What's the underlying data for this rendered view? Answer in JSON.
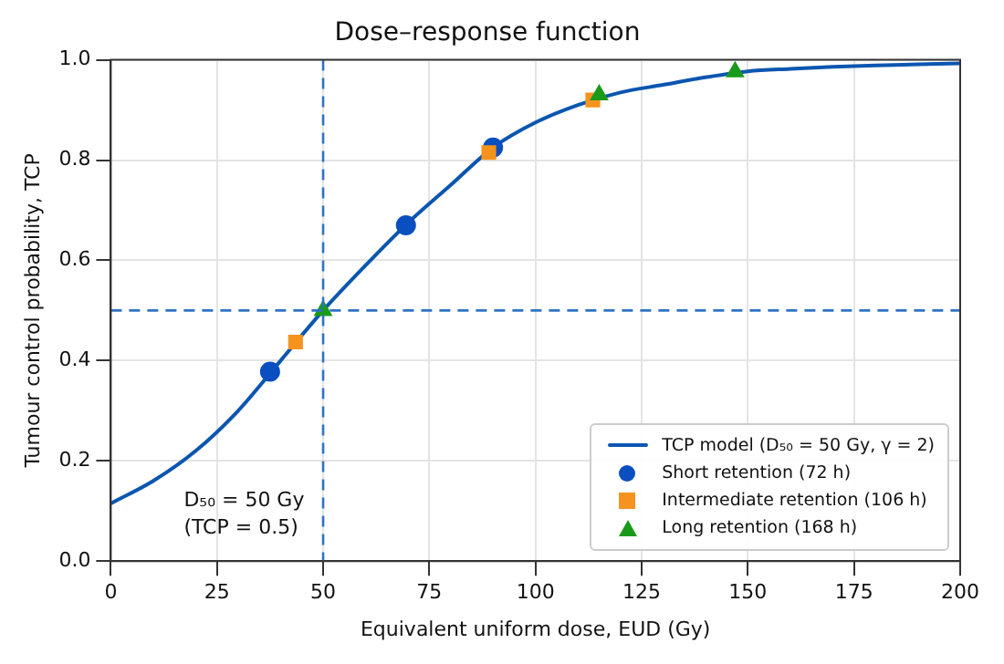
{
  "chart_data": {
    "type": "scatter",
    "title": "Dose–response function",
    "xlabel": "Equivalent uniform dose, EUD (Gy)",
    "ylabel": "Tumour control probability, TCP",
    "xlim": [
      0,
      200
    ],
    "xticks": [
      0,
      25,
      50,
      75,
      100,
      125,
      150,
      175,
      200
    ],
    "ylim": [
      0,
      1
    ],
    "yticks": [
      {
        "value": 0,
        "label": "0.0"
      },
      0.2,
      0.4,
      0.6,
      0.8,
      {
        "value": 1,
        "label": "1.0"
      }
    ],
    "grid": true,
    "legend": "bottom right",
    "series": [
      {
        "name": "TCP model (D₅₀ = 50 Gy, γ = 2)",
        "type": "line",
        "marker": "none",
        "color": "#0b56b0",
        "x": [
          0,
          10,
          20,
          30,
          40,
          50,
          60,
          70,
          80,
          90,
          100,
          110,
          120,
          130,
          140,
          150,
          160,
          170,
          180,
          190,
          200
        ],
        "values": [
          0.115,
          0.16,
          0.22,
          0.3,
          0.4,
          0.5,
          0.59,
          0.675,
          0.75,
          0.825,
          0.875,
          0.91,
          0.935,
          0.95,
          0.965,
          0.977,
          0.982,
          0.986,
          0.989,
          0.991,
          0.993
        ]
      },
      {
        "name": "Short retention (72 h)",
        "type": "scatter",
        "marker": "circle",
        "color": "#0a4fc0",
        "x": [
          37.5,
          69.5,
          90
        ],
        "values": [
          0.378,
          0.67,
          0.825
        ]
      },
      {
        "name": "Intermediate retention (106 h)",
        "type": "scatter",
        "marker": "square",
        "color": "#f5931e",
        "x": [
          43.5,
          89,
          113.5
        ],
        "values": [
          0.437,
          0.815,
          0.92
        ]
      },
      {
        "name": "Long retention (168 h)",
        "type": "scatter",
        "marker": "triangle",
        "color": "#1a9a1a",
        "x": [
          50,
          115,
          147
        ],
        "values": [
          0.5,
          0.93,
          0.976
        ]
      }
    ],
    "ref_lines": [
      {
        "axis": "x",
        "value": 50,
        "color": "#2f73c4",
        "line_style": "dashed"
      },
      {
        "axis": "y",
        "value": 0.5,
        "color": "#2f73c4",
        "line_style": "dashed"
      }
    ],
    "annotations": [
      "D₅₀ = 50 Gy\n(TCP = 0.5)"
    ]
  }
}
